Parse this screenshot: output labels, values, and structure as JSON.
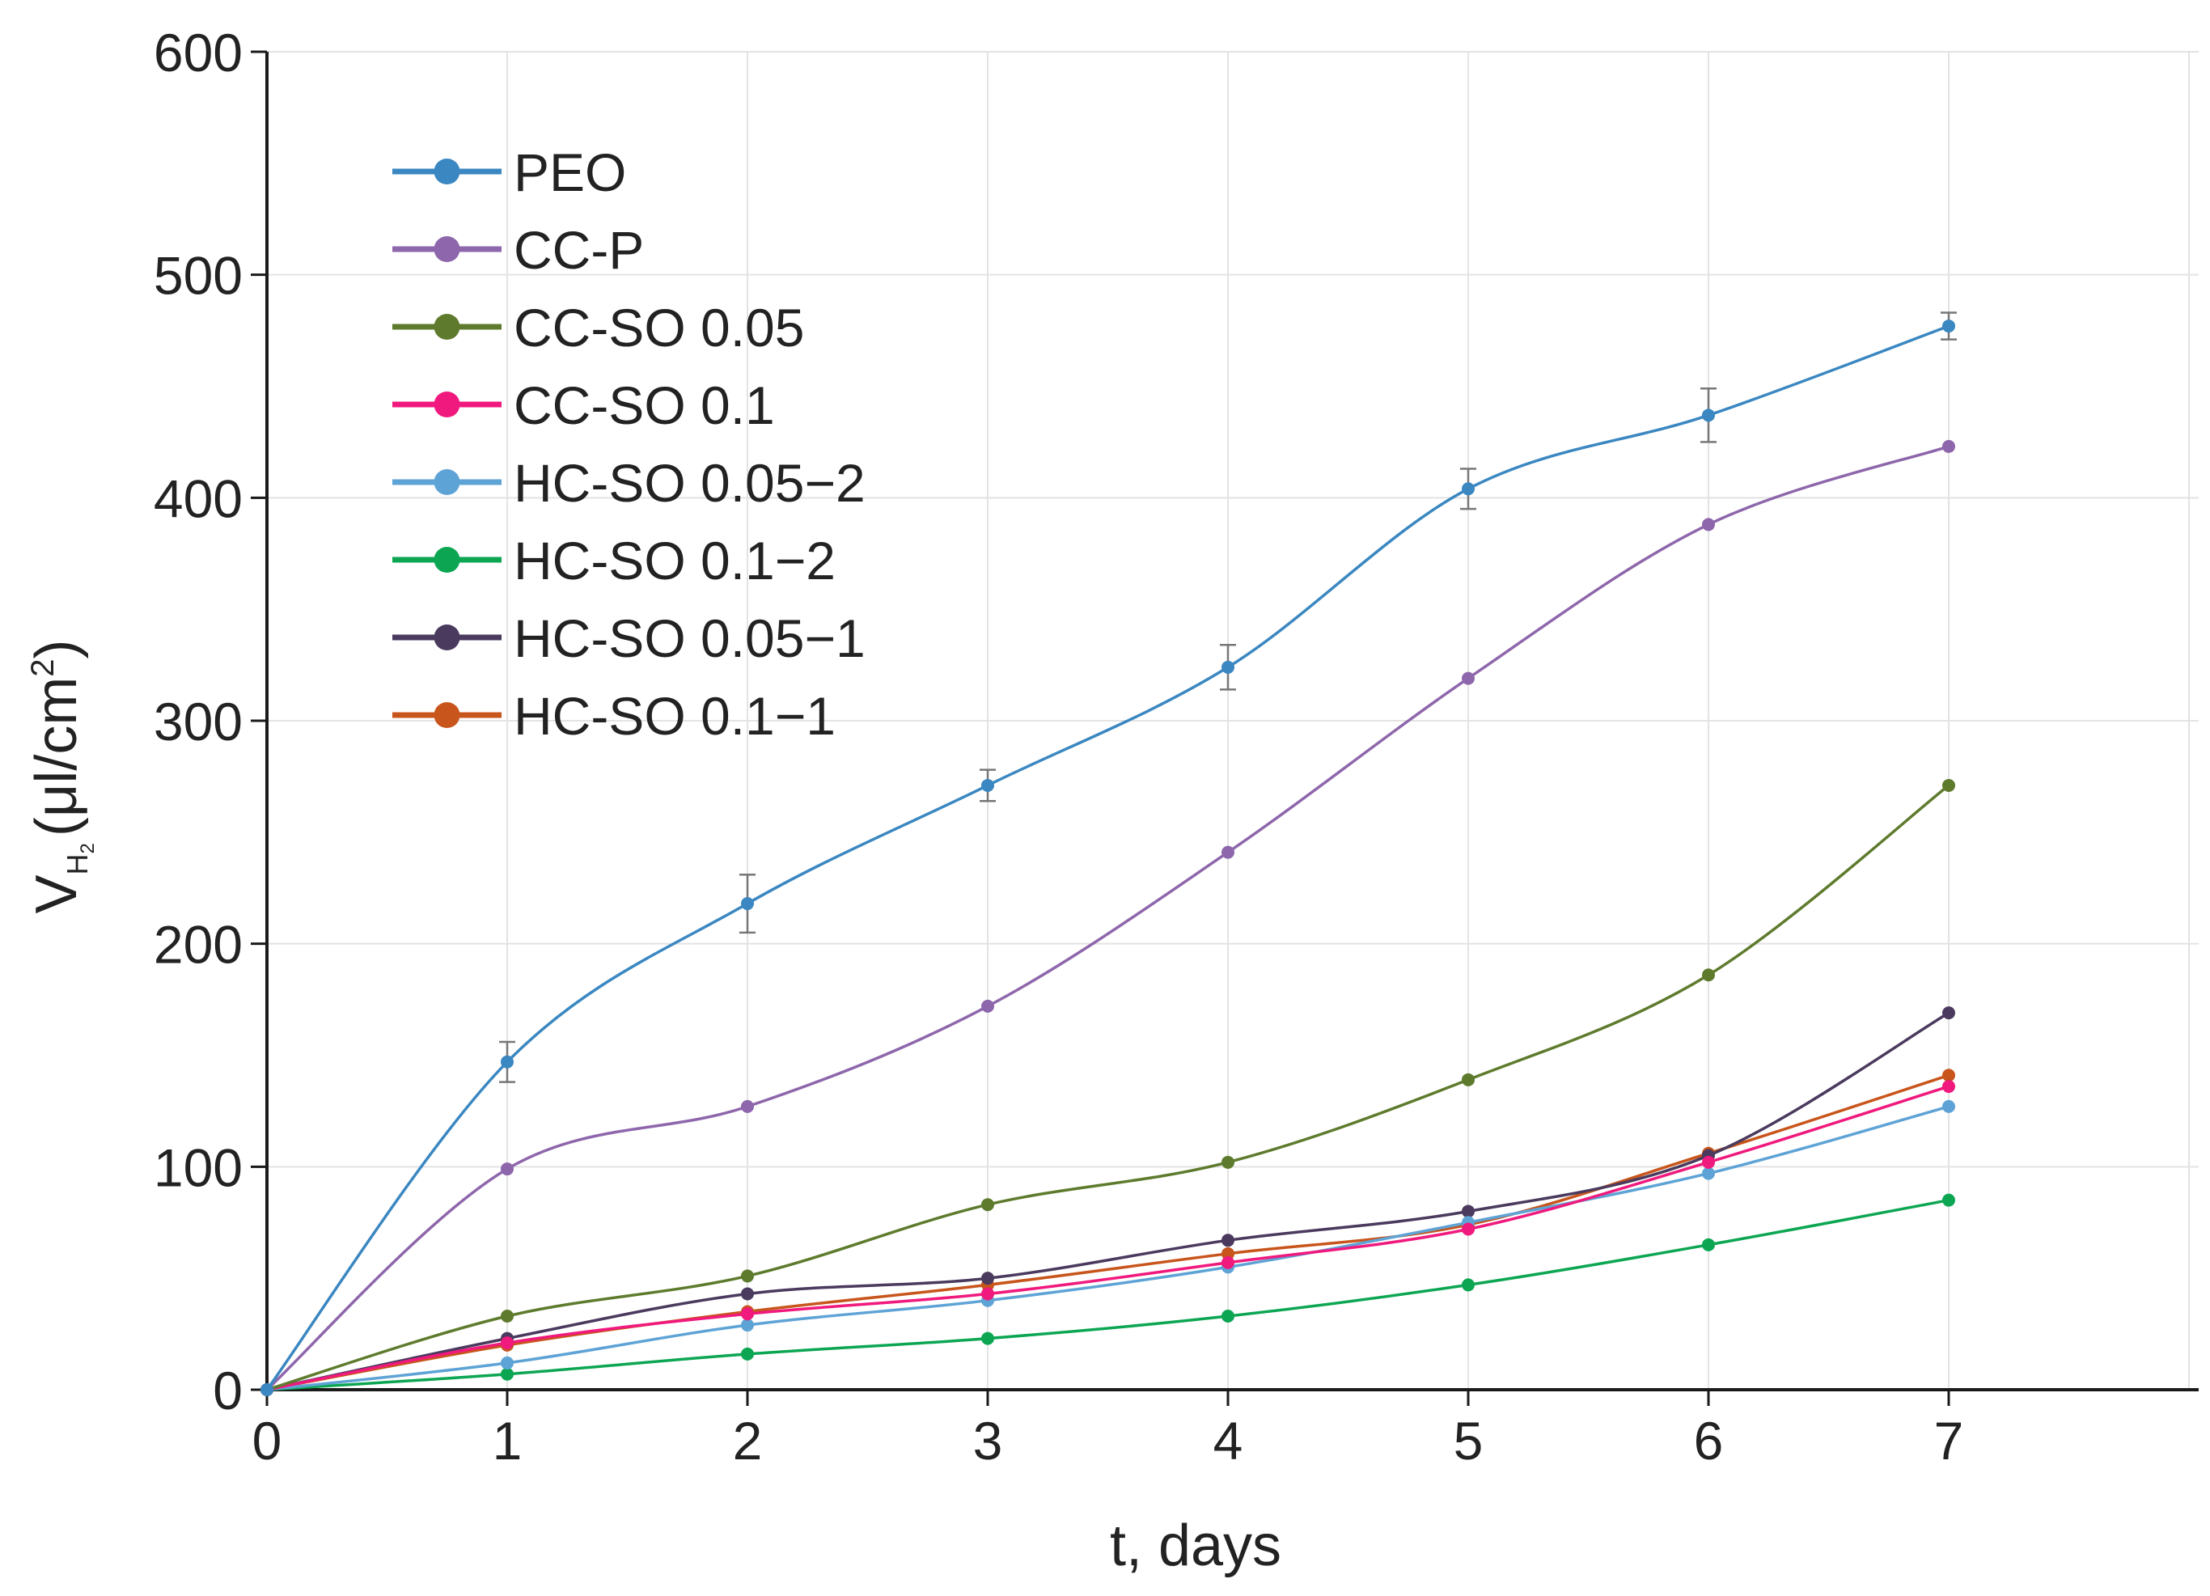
{
  "chart_data": {
    "type": "line",
    "title": "",
    "xlabel": "t, days",
    "ylabel": {
      "prefix": "V",
      "sub": "H",
      "subsub": "2",
      "unit_open": "(μl/cm",
      "unit_sup": "2",
      "unit_close": ")"
    },
    "xlim": [
      0,
      8
    ],
    "ylim": [
      0,
      600
    ],
    "x_ticks": [
      0,
      1,
      2,
      3,
      4,
      5,
      6,
      7
    ],
    "x_tick_labels": [
      "0",
      "1",
      "2",
      "3",
      "4",
      "5",
      "6",
      "7"
    ],
    "y_ticks": [
      0,
      100,
      200,
      300,
      400,
      500,
      600
    ],
    "y_tick_labels": [
      "0",
      "100",
      "200",
      "300",
      "400",
      "500",
      "600"
    ],
    "grid": true,
    "legend_position": "top-left",
    "x": [
      0,
      1,
      2,
      3,
      4,
      5,
      6,
      7
    ],
    "series": [
      {
        "name": "PEO",
        "color": "#3a87c1",
        "values": [
          0,
          147,
          218,
          271,
          324,
          404,
          437,
          477
        ],
        "error": [
          0,
          9,
          13,
          7,
          10,
          9,
          12,
          6
        ]
      },
      {
        "name": "CC-P",
        "color": "#8e66ab",
        "values": [
          0,
          99,
          127,
          172,
          241,
          319,
          388,
          423
        ]
      },
      {
        "name": "CC-SO 0.05",
        "color": "#5e7b2d",
        "values": [
          0,
          33,
          51,
          83,
          102,
          139,
          186,
          271
        ]
      },
      {
        "name": "CC-SO 0.1",
        "color": "#f0197d",
        "values": [
          0,
          21,
          34,
          43,
          57,
          72,
          102,
          136
        ]
      },
      {
        "name": "HC-SO 0.05−2",
        "color": "#5ea3d6",
        "values": [
          0,
          12,
          29,
          40,
          55,
          75,
          97,
          127
        ]
      },
      {
        "name": "HC-SO 0.1−2",
        "color": "#0ca653",
        "values": [
          0,
          7,
          16,
          23,
          33,
          47,
          65,
          85
        ]
      },
      {
        "name": "HC-SO 0.05−1",
        "color": "#4a3a5e",
        "values": [
          0,
          23,
          43,
          50,
          67,
          80,
          105,
          169
        ]
      },
      {
        "name": "HC-SO 0.1−1",
        "color": "#c8551b",
        "values": [
          0,
          20,
          35,
          47,
          61,
          74,
          106,
          141
        ]
      }
    ]
  }
}
